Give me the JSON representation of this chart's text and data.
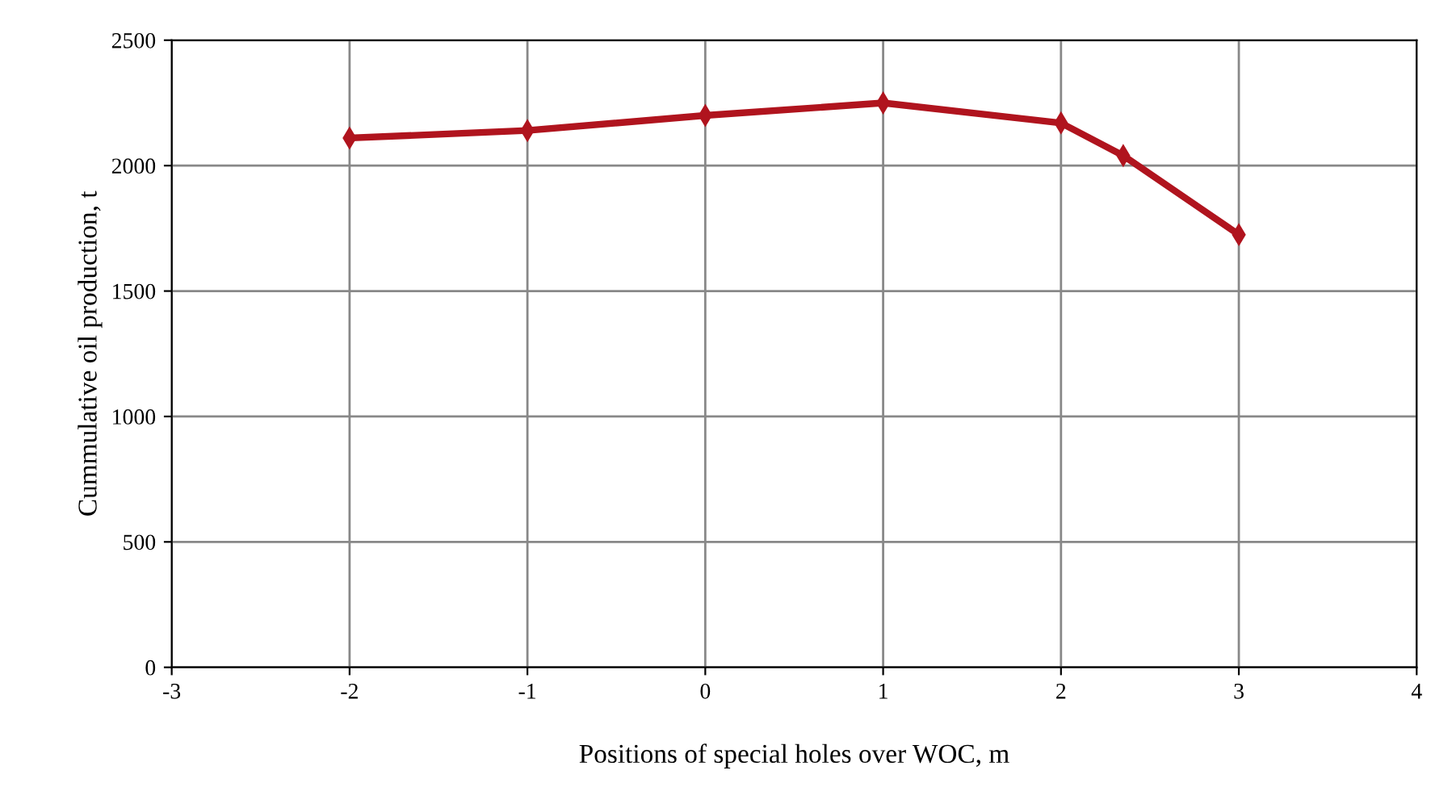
{
  "chart_data": {
    "type": "line",
    "xlabel": "Positions of special holes over WOC, m",
    "ylabel": "Cummulative oil production, t",
    "x": [
      -2,
      -1,
      0,
      1,
      2,
      2.35,
      3
    ],
    "series": [
      {
        "color": "#b0141e",
        "values": [
          2110,
          2140,
          2200,
          2250,
          2170,
          2040,
          1725
        ]
      }
    ],
    "xlim": [
      -3,
      4
    ],
    "xticks": [
      -3,
      -2,
      -1,
      0,
      1,
      2,
      3,
      4
    ],
    "ylim": [
      0,
      2500
    ],
    "yticks": [
      0,
      500,
      1000,
      1500,
      2000,
      2500
    ],
    "grid": true,
    "marker": "diamond",
    "line_style": "solid",
    "legend": false
  }
}
